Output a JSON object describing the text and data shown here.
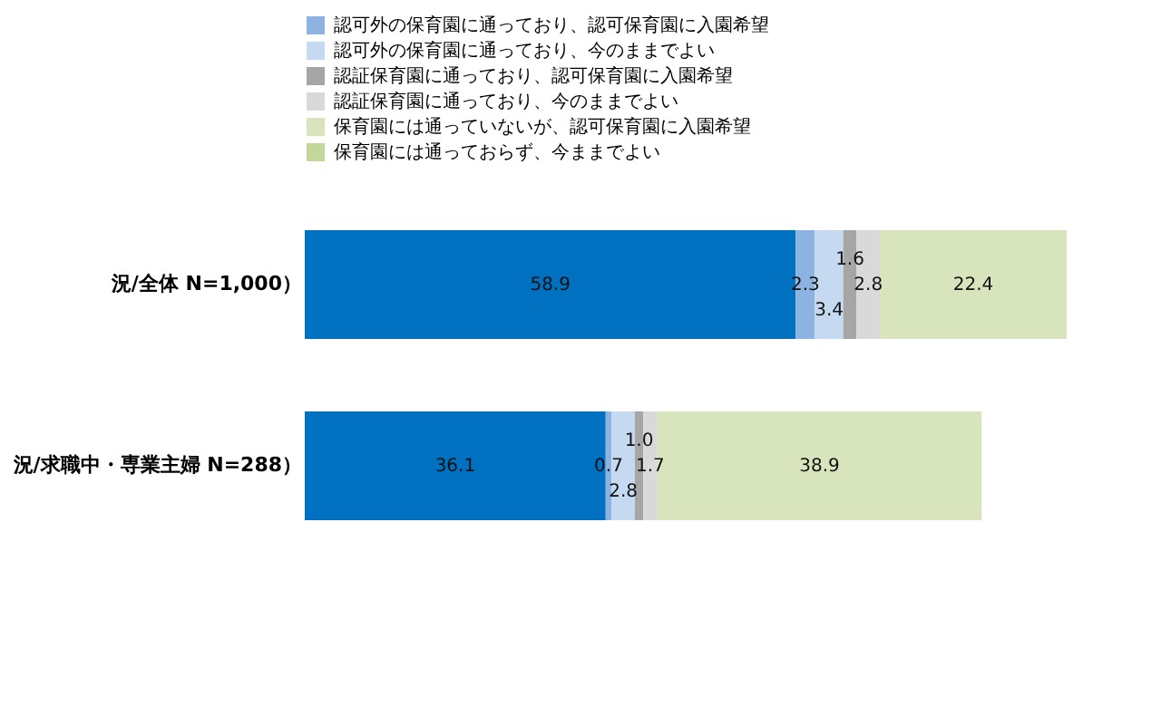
{
  "chart_data": {
    "type": "bar",
    "orientation": "horizontal",
    "stacked": true,
    "legend": "top",
    "categories": [
      "況/全体 N=1,000）",
      "況/求職中・専業主婦 N=288）"
    ],
    "series": [
      {
        "color": "#0070c0",
        "values": [
          58.9,
          36.1
        ],
        "value_labels": [
          "58.9",
          "36.1"
        ]
      },
      {
        "name": "認可外の保育園に通っており、認可保育園に入園希望",
        "color": "#8db3e2",
        "values": [
          2.3,
          0.7
        ],
        "value_labels": [
          "2.3",
          "0.7"
        ]
      },
      {
        "name": "認可外の保育園に通っており、今のままでよい",
        "color": "#c5d9f1",
        "values": [
          3.4,
          2.8
        ],
        "value_labels": [
          "3.4",
          "2.8"
        ]
      },
      {
        "name": "認証保育園に通っており、認可保育園に入園希望",
        "color": "#a6a6a6",
        "values": [
          1.6,
          1.0
        ],
        "value_labels": [
          "1.6",
          "1.0"
        ]
      },
      {
        "name": "認証保育園に通っており、今のままでよい",
        "color": "#d9d9d9",
        "values": [
          2.8,
          1.7
        ],
        "value_labels": [
          "2.8",
          "1.7"
        ]
      },
      {
        "name": "保育園には通っていないが、認可保育園に入園希望",
        "color": "#d7e4bc",
        "values": [
          22.4,
          38.9
        ],
        "value_labels": [
          "22.4",
          "38.9"
        ]
      },
      {
        "name": "保育園には通っておらず、今ままでよい",
        "color": "#c4d79b",
        "values": [
          null,
          null
        ]
      }
    ]
  }
}
